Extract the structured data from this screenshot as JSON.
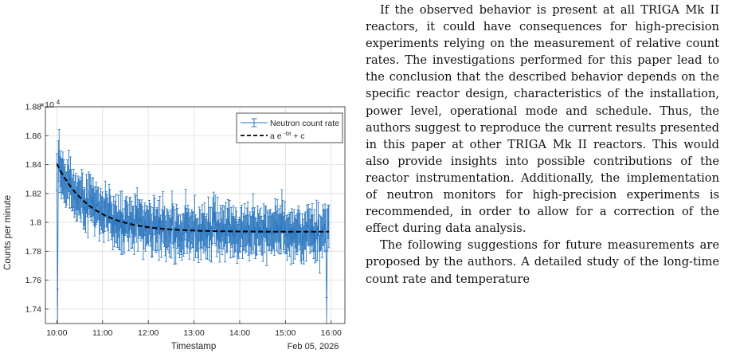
{
  "chart_data": {
    "type": "line",
    "ylabel": "Counts per minute",
    "xlabel": "Timestamp",
    "date_label": "Feb 05, 2026",
    "y_exponent": "×10",
    "y_exponent_power": "4",
    "ylim": [
      1.73,
      1.88
    ],
    "y_ticks": [
      "1.74",
      "1.76",
      "1.78",
      "1.8",
      "1.82",
      "1.84",
      "1.86",
      "1.88"
    ],
    "y_tick_values": [
      1.74,
      1.76,
      1.78,
      1.8,
      1.82,
      1.84,
      1.86,
      1.88
    ],
    "x_ticks": [
      "10:00",
      "11:00",
      "12:00",
      "13:00",
      "14:00",
      "15:00",
      "16:00"
    ],
    "x_tick_hours": [
      10,
      11,
      12,
      13,
      14,
      15,
      16
    ],
    "xlim_hours": [
      9.75,
      16.3
    ],
    "grid": true,
    "legend_position": "top-right",
    "series": [
      {
        "name": "Neutron count rate",
        "style": "errorbar",
        "color": "#2f79c0",
        "x_start_hour": 10.0,
        "x_end_hour": 15.95,
        "n_points": 360,
        "model": {
          "a": 0.047,
          "b_per_hour": 1.35,
          "c": 1.7935
        },
        "noise_sd": 0.0095,
        "error_half_width": 0.013
      },
      {
        "name": "a e",
        "name_sup": "-bt",
        "name_suffix": " + c",
        "style": "dashed",
        "color": "#000000",
        "x_start_hour": 10.0,
        "x_end_hour": 15.95,
        "model": {
          "a": 0.047,
          "b_per_hour": 1.35,
          "c": 1.7935
        }
      }
    ]
  },
  "text": {
    "para1": "If the observed behavior is present at all TRIGA Mk II reactors, it could have consequences for high-precision experiments relying on the measurement of relative count rates. The investigations performed for this paper lead to the conclusion that the described behavior depends on the specific reactor design, characteristics of the installation, power level, operational mode and schedule. Thus, the authors suggest to reproduce the current results presented in this paper at other TRIGA Mk II reactors. This would also provide insights into possible contributions of the reactor instrumentation. Additionally, the implementation of neutron monitors for high-precision experiments is recommended, in order to allow for a correction of the effect during data analysis.",
    "para2": "The following suggestions for future measurements are proposed by the authors. A detailed study of the long-time count rate and temperature"
  }
}
